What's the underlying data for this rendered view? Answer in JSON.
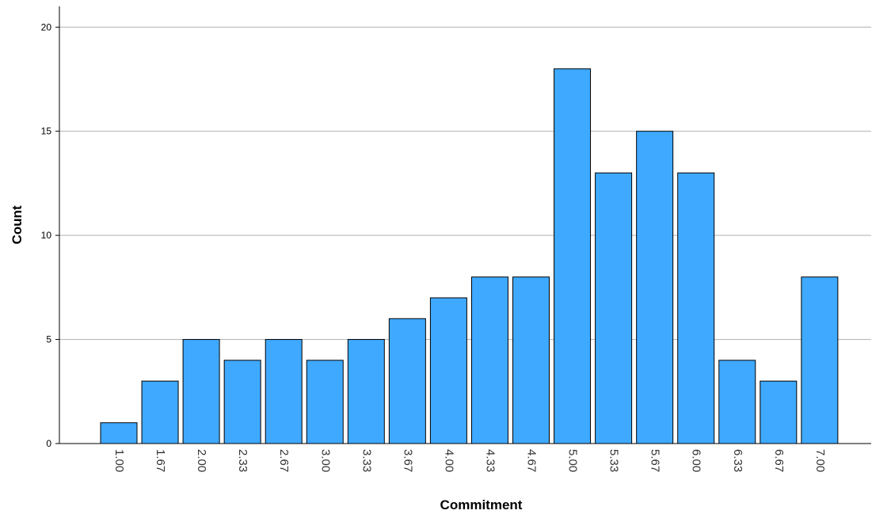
{
  "chart_data": {
    "type": "bar",
    "title": "",
    "xlabel": "Commitment",
    "ylabel": "Count",
    "categories": [
      "1.00",
      "1.67",
      "2.00",
      "2.33",
      "2.67",
      "3.00",
      "3.33",
      "3.67",
      "4.00",
      "4.33",
      "4.67",
      "5.00",
      "5.33",
      "5.67",
      "6.00",
      "6.33",
      "6.67",
      "7.00"
    ],
    "values": [
      1,
      3,
      5,
      4,
      5,
      4,
      5,
      6,
      7,
      8,
      8,
      18,
      13,
      15,
      13,
      4,
      3,
      8
    ],
    "ylim": [
      0,
      21
    ],
    "yticks": [
      0,
      5,
      10,
      15,
      20
    ],
    "grid": true,
    "colors": {
      "bar_fill": "#3FA9FF",
      "bar_stroke": "#000000",
      "grid": "#B0B0B0",
      "axis": "#000000"
    }
  }
}
